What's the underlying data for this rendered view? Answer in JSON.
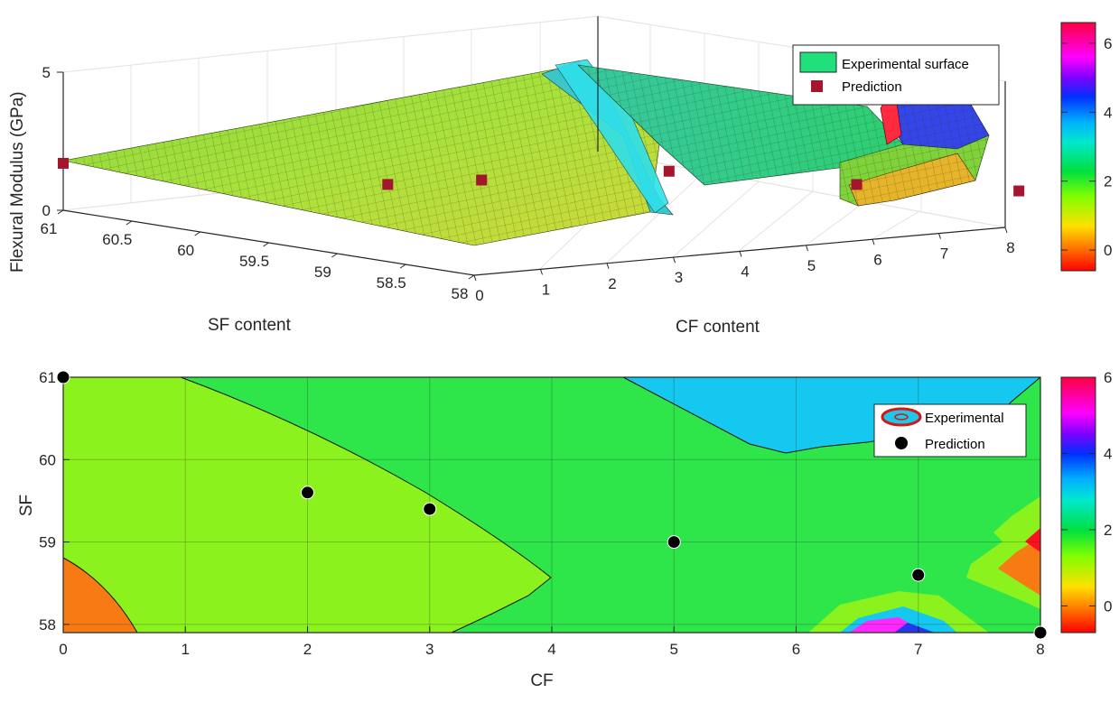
{
  "chart_data": [
    {
      "type": "surface",
      "zlabel": "Flexural Modulus (GPa)",
      "xlabel": "SF content",
      "ylabel": "CF content",
      "x_ticks": [
        "61",
        "60.5",
        "60",
        "59.5",
        "59",
        "58.5",
        "58"
      ],
      "y_ticks": [
        "0",
        "1",
        "2",
        "3",
        "4",
        "5",
        "6",
        "7",
        "8"
      ],
      "z_ticks": [
        "0",
        "5"
      ],
      "xlim": [
        58,
        61
      ],
      "ylim": [
        0,
        8
      ],
      "zlim": [
        0,
        5
      ],
      "legend": {
        "placement": "top-right",
        "entries": [
          "Experimental surface",
          "Prediction"
        ]
      },
      "colorbar": {
        "ticks": [
          "6",
          "4",
          "2",
          "0"
        ],
        "range": [
          -0.6,
          6.6
        ]
      },
      "prediction_points": [
        {
          "cf": 0,
          "sf": 61,
          "modulus": 1.7
        },
        {
          "cf": 2,
          "sf": 59.6,
          "modulus": 1.6
        },
        {
          "cf": 3,
          "sf": 59.4,
          "modulus": 1.7
        },
        {
          "cf": 5,
          "sf": 59,
          "modulus": 1.9
        },
        {
          "cf": 7,
          "sf": 58.6,
          "modulus": 1.3
        },
        {
          "cf": 8,
          "sf": 57.9,
          "modulus": 1.4
        }
      ]
    },
    {
      "type": "contour",
      "xlabel": "CF",
      "ylabel": "SF",
      "x_ticks": [
        "0",
        "1",
        "2",
        "3",
        "4",
        "5",
        "6",
        "7",
        "8"
      ],
      "y_ticks": [
        "58",
        "59",
        "60",
        "61"
      ],
      "xlim": [
        0,
        8
      ],
      "ylim": [
        57.9,
        61
      ],
      "grid": true,
      "legend": {
        "placement": "top-right",
        "entries": [
          "Experimental",
          "Prediction"
        ]
      },
      "colorbar": {
        "ticks": [
          "6",
          "4",
          "2",
          "0"
        ],
        "range": [
          -0.7,
          6
        ]
      },
      "prediction_points": [
        {
          "cf": 0,
          "sf": 61
        },
        {
          "cf": 2,
          "sf": 59.6
        },
        {
          "cf": 3,
          "sf": 59.4
        },
        {
          "cf": 5,
          "sf": 59
        },
        {
          "cf": 7,
          "sf": 58.6
        },
        {
          "cf": 8,
          "sf": 57.9
        }
      ]
    }
  ],
  "colors": {
    "surface_yellow_green": "#b7e43a",
    "surface_green": "#3ed36a",
    "plateau_green": "#2fcf70",
    "cyan": "#2ee6f0",
    "prediction_marker": "#a3162d",
    "contour_light_green": "#8cf21e",
    "contour_green": "#2ee64a",
    "contour_cyan": "#14c8f0",
    "contour_orange": "#f77a12",
    "contour_magenta": "#ff28ff"
  }
}
